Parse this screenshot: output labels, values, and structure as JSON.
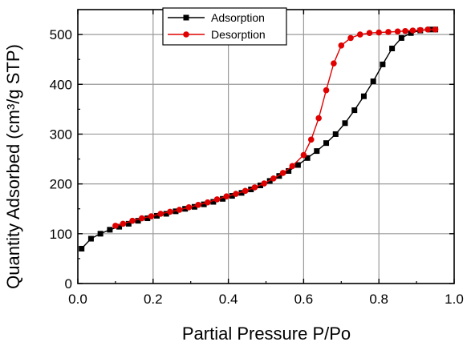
{
  "chart_data": {
    "type": "line",
    "xlabel": "Partial Pressure P/Po",
    "ylabel": "Quantity Adsorbed (cm³/g STP)",
    "xlim": [
      0.0,
      1.0
    ],
    "ylim": [
      0,
      550
    ],
    "xticks": [
      0.0,
      0.2,
      0.4,
      0.6,
      0.8,
      1.0
    ],
    "xtick_labels": [
      "0.0",
      "0.2",
      "0.4",
      "0.6",
      "0.8",
      "1.0"
    ],
    "yticks": [
      0,
      100,
      200,
      300,
      400,
      500
    ],
    "ytick_labels": [
      "0",
      "100",
      "200",
      "300",
      "400",
      "500"
    ],
    "grid": true,
    "legend_position": "top-center",
    "series": [
      {
        "name": "Adsorption",
        "color": "#000000",
        "marker": "square",
        "x": [
          0.01,
          0.035,
          0.06,
          0.085,
          0.11,
          0.135,
          0.16,
          0.185,
          0.21,
          0.235,
          0.26,
          0.285,
          0.31,
          0.335,
          0.36,
          0.385,
          0.41,
          0.435,
          0.46,
          0.485,
          0.51,
          0.535,
          0.56,
          0.585,
          0.61,
          0.635,
          0.66,
          0.685,
          0.71,
          0.735,
          0.76,
          0.785,
          0.81,
          0.835,
          0.86,
          0.885,
          0.91,
          0.935,
          0.95
        ],
        "y": [
          70,
          90,
          100,
          108,
          114,
          120,
          126,
          131,
          136,
          140,
          145,
          150,
          154,
          159,
          164,
          170,
          176,
          182,
          189,
          197,
          206,
          216,
          226,
          238,
          252,
          266,
          282,
          300,
          322,
          348,
          376,
          406,
          440,
          472,
          493,
          503,
          508,
          510,
          510
        ]
      },
      {
        "name": "Desorption",
        "color": "#e00000",
        "marker": "circle",
        "x": [
          0.95,
          0.93,
          0.91,
          0.89,
          0.87,
          0.85,
          0.825,
          0.8,
          0.775,
          0.75,
          0.725,
          0.7,
          0.68,
          0.66,
          0.64,
          0.62,
          0.6,
          0.57,
          0.545,
          0.52,
          0.495,
          0.47,
          0.445,
          0.42,
          0.395,
          0.37,
          0.345,
          0.32,
          0.295,
          0.27,
          0.245,
          0.22,
          0.195,
          0.17,
          0.145,
          0.12,
          0.1
        ],
        "y": [
          510,
          510,
          509,
          508,
          507,
          506,
          505,
          504,
          503,
          500,
          493,
          478,
          442,
          388,
          332,
          289,
          258,
          236,
          222,
          211,
          201,
          193,
          186,
          180,
          175,
          169,
          163,
          158,
          153,
          148,
          144,
          140,
          135,
          131,
          126,
          120,
          116
        ]
      }
    ]
  }
}
